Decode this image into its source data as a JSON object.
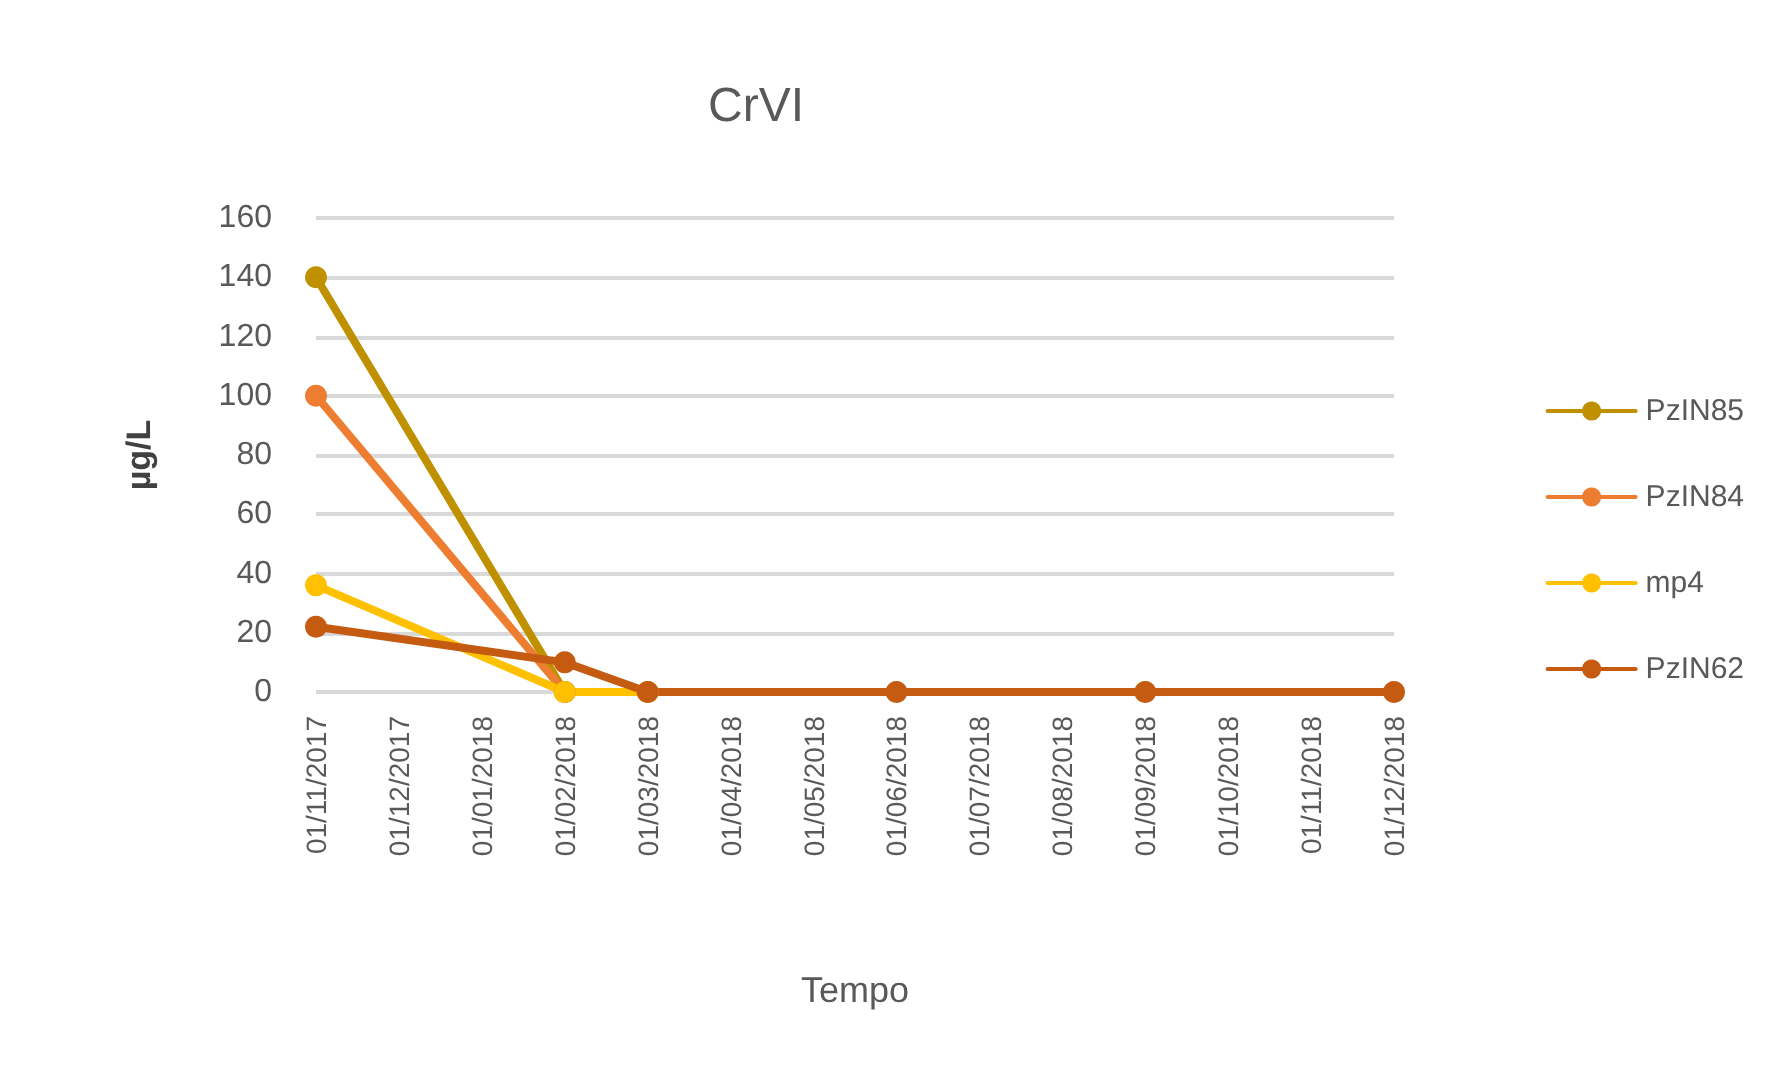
{
  "chart_data": {
    "type": "line",
    "title": "CrVI",
    "xlabel": "Tempo",
    "ylabel": "µg/L",
    "categories": [
      "01/11/2017",
      "01/12/2017",
      "01/01/2018",
      "01/02/2018",
      "01/03/2018",
      "01/04/2018",
      "01/05/2018",
      "01/06/2018",
      "01/07/2018",
      "01/08/2018",
      "01/09/2018",
      "01/10/2018",
      "01/11/2018",
      "01/12/2018"
    ],
    "series": [
      {
        "name": "PzIN85",
        "color": "#bf9000",
        "values": [
          140,
          null,
          null,
          0,
          null,
          null,
          null,
          null,
          null,
          null,
          null,
          null,
          null,
          null
        ]
      },
      {
        "name": "PzIN84",
        "color": "#ed7d31",
        "values": [
          100,
          null,
          null,
          0,
          null,
          null,
          null,
          null,
          null,
          null,
          null,
          null,
          null,
          null
        ]
      },
      {
        "name": "mp4",
        "color": "#ffc000",
        "values": [
          36,
          null,
          null,
          0,
          0,
          null,
          null,
          null,
          null,
          null,
          null,
          null,
          null,
          null
        ]
      },
      {
        "name": "PzIN62",
        "color": "#c55a11",
        "values": [
          22,
          null,
          null,
          10,
          0,
          null,
          null,
          0,
          null,
          null,
          0,
          null,
          null,
          0
        ]
      }
    ],
    "ylim": [
      0,
      160
    ],
    "yticks": [
      0,
      20,
      40,
      60,
      80,
      100,
      120,
      140,
      160
    ],
    "grid": "y",
    "legend": "right",
    "marker": "circle",
    "line_style": "solid"
  }
}
